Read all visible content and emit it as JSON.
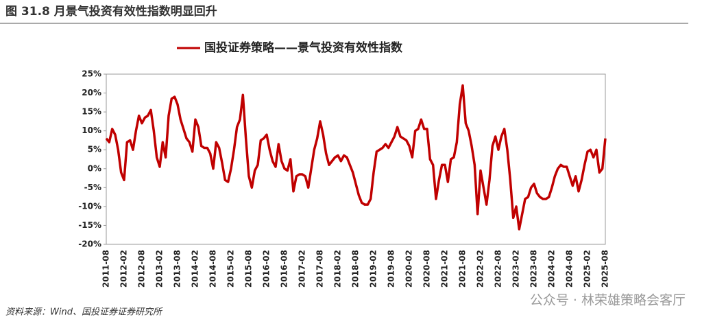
{
  "header": {
    "title": "图 31.8 月景气投资有效性指数明显回升"
  },
  "chart_data": {
    "type": "line",
    "categories": [
      "2011-08",
      null,
      null,
      null,
      null,
      null,
      "2012-02",
      null,
      null,
      null,
      null,
      null,
      "2012-08",
      null,
      null,
      null,
      null,
      null,
      "2013-02",
      null,
      null,
      null,
      null,
      null,
      "2013-08",
      null,
      null,
      null,
      null,
      null,
      "2014-02",
      null,
      null,
      null,
      null,
      null,
      "2014-08",
      null,
      null,
      null,
      null,
      null,
      "2015-02",
      null,
      null,
      null,
      null,
      null,
      "2015-08",
      null,
      null,
      null,
      null,
      null,
      "2016-02",
      null,
      null,
      null,
      null,
      null,
      "2016-08",
      null,
      null,
      null,
      null,
      null,
      "2017-02",
      null,
      null,
      null,
      null,
      null,
      "2017-08",
      null,
      null,
      null,
      null,
      null,
      "2018-02",
      null,
      null,
      null,
      null,
      null,
      "2018-08",
      null,
      null,
      null,
      null,
      null,
      "2019-02",
      null,
      null,
      null,
      null,
      null,
      "2019-08",
      null,
      null,
      null,
      null,
      null,
      "2020-02",
      null,
      null,
      null,
      null,
      null,
      "2020-08",
      null,
      null,
      null,
      null,
      null,
      "2021-02",
      null,
      null,
      null,
      null,
      null,
      "2021-08",
      null,
      null,
      null,
      null,
      null,
      "2022-02",
      null,
      null,
      null,
      null,
      null,
      "2022-08",
      null,
      null,
      null,
      null,
      null,
      "2023-02",
      null,
      null,
      null,
      null,
      null,
      "2023-08",
      null,
      null,
      null,
      null,
      null,
      "2024-02",
      null,
      null,
      null,
      null,
      null,
      "2024-08",
      null,
      null,
      null,
      null,
      null,
      "2025-02",
      null,
      null,
      null,
      null,
      null,
      "2025-08"
    ],
    "series": [
      {
        "name": "国投证券策略——景气投资有效性指数",
        "color": "#c00000",
        "values": [
          8,
          7,
          10.5,
          9,
          5,
          -1,
          -3,
          7,
          7.5,
          5,
          10,
          14,
          12,
          13.5,
          14,
          15.5,
          10,
          3,
          0.5,
          7,
          3,
          14,
          18.5,
          19,
          17,
          13,
          10.5,
          8,
          7,
          4.5,
          13,
          11,
          6,
          5.5,
          5.5,
          4,
          0,
          7,
          5.5,
          1.5,
          -3,
          -3.5,
          0,
          5,
          11,
          13,
          19.5,
          8,
          -2,
          -5,
          -0.5,
          1,
          7.5,
          8,
          9,
          5,
          2,
          0.5,
          6.5,
          2,
          0,
          -0.5,
          2.5,
          -6,
          -2,
          -1.5,
          -1.5,
          -2,
          -5,
          0,
          5,
          8,
          12.5,
          9,
          4,
          1,
          2,
          3,
          3.5,
          2,
          3.5,
          3,
          1,
          -1,
          -4,
          -7,
          -9,
          -9.5,
          -9.5,
          -8,
          -1,
          4.5,
          5,
          5.5,
          6.5,
          5.5,
          7,
          8.5,
          11,
          8.5,
          8,
          7.5,
          6,
          3,
          10,
          10.5,
          13,
          10.5,
          10.5,
          2.5,
          1,
          -8,
          -3,
          1,
          1,
          -3.5,
          2.5,
          3,
          7,
          17,
          22,
          12,
          10,
          6,
          1,
          -12,
          -0.5,
          -5,
          -9.5,
          -3,
          6,
          8.5,
          5,
          8.5,
          10.5,
          5,
          -3,
          -13,
          -10,
          -16,
          -12,
          -8,
          -7.5,
          -5,
          -4,
          -6.5,
          -7.5,
          -8,
          -8,
          -7.5,
          -5,
          -2,
          0,
          1,
          0.5,
          0.5,
          -2,
          -4.5,
          -2,
          -6,
          -3,
          1,
          4.5,
          5,
          3,
          5,
          -1,
          0,
          8
        ]
      }
    ],
    "ylim": [
      -20,
      25
    ],
    "yticks": [
      {
        "value": -20,
        "label": "-20%"
      },
      {
        "value": -15,
        "label": "-15%"
      },
      {
        "value": -10,
        "label": "-10%"
      },
      {
        "value": -5,
        "label": "-5%"
      },
      {
        "value": 0,
        "label": "0%"
      },
      {
        "value": 5,
        "label": "5%"
      },
      {
        "value": 10,
        "label": "10%"
      },
      {
        "value": 15,
        "label": "15%"
      },
      {
        "value": 20,
        "label": "20%"
      },
      {
        "value": 25,
        "label": "25%"
      }
    ],
    "grid": false,
    "legend": "top"
  },
  "footer": {
    "source": "资料来源：Wind、国投证券证券研究所",
    "watermark": "公众号 · 林荣雄策略会客厅"
  }
}
